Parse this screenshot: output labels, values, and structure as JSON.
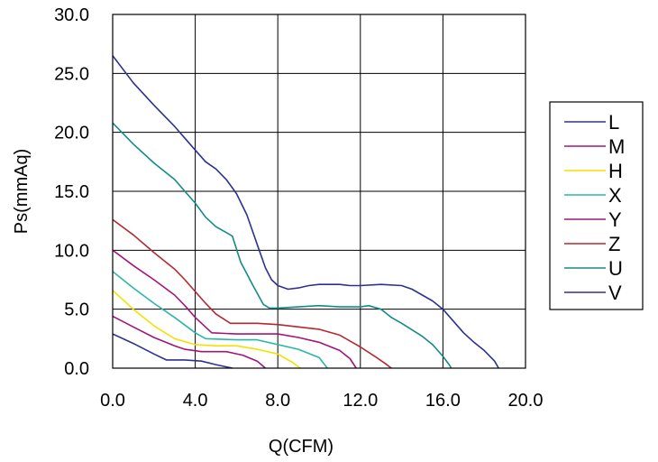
{
  "chart_data": {
    "type": "line",
    "title": "",
    "xlabel": "Q(CFM)",
    "ylabel": "Ps(mmAq)",
    "xlim": [
      0,
      20
    ],
    "ylim": [
      0,
      30
    ],
    "x_ticks": [
      "0.0",
      "4.0",
      "8.0",
      "12.0",
      "16.0",
      "20.0"
    ],
    "y_ticks": [
      "0.0",
      "5.0",
      "10.0",
      "15.0",
      "20.0",
      "25.0",
      "30.0"
    ],
    "grid": true,
    "legend_position": "right",
    "series": [
      {
        "name": "L",
        "color": "#2e3192",
        "points": [
          [
            0,
            2.9
          ],
          [
            1,
            2.1
          ],
          [
            2,
            1.2
          ],
          [
            2.6,
            0.7
          ],
          [
            3.5,
            0.7
          ],
          [
            4.3,
            0.6
          ],
          [
            5,
            0.3
          ],
          [
            5.8,
            0
          ]
        ]
      },
      {
        "name": "M",
        "color": "#a3157a",
        "points": [
          [
            0,
            4.4
          ],
          [
            1,
            3.5
          ],
          [
            2,
            2.6
          ],
          [
            3,
            1.9
          ],
          [
            3.5,
            1.6
          ],
          [
            4.3,
            1.4
          ],
          [
            5.5,
            1.4
          ],
          [
            6.3,
            1.1
          ],
          [
            7,
            0.6
          ],
          [
            7.4,
            0
          ]
        ]
      },
      {
        "name": "H",
        "color": "#f2e200",
        "points": [
          [
            0,
            6.6
          ],
          [
            1,
            5.0
          ],
          [
            2,
            3.6
          ],
          [
            3,
            2.5
          ],
          [
            4,
            2.0
          ],
          [
            5,
            1.9
          ],
          [
            6,
            1.9
          ],
          [
            7,
            1.6
          ],
          [
            8,
            1.2
          ],
          [
            8.7,
            0.5
          ],
          [
            9.1,
            0
          ]
        ]
      },
      {
        "name": "X",
        "color": "#2bb5a7",
        "points": [
          [
            0,
            8.2
          ],
          [
            1,
            6.8
          ],
          [
            2,
            5.5
          ],
          [
            3,
            4.3
          ],
          [
            4,
            3.0
          ],
          [
            4.5,
            2.5
          ],
          [
            6,
            2.4
          ],
          [
            7,
            2.4
          ],
          [
            8,
            2.0
          ],
          [
            9,
            1.6
          ],
          [
            10,
            0.9
          ],
          [
            10.4,
            0
          ]
        ]
      },
      {
        "name": "Y",
        "color": "#a3157a",
        "points": [
          [
            0,
            10.0
          ],
          [
            1,
            8.7
          ],
          [
            2,
            7.5
          ],
          [
            3,
            6.2
          ],
          [
            3.5,
            5.3
          ],
          [
            4,
            4.3
          ],
          [
            4.8,
            3.0
          ],
          [
            6,
            2.9
          ],
          [
            7,
            2.9
          ],
          [
            8,
            2.9
          ],
          [
            9,
            2.6
          ],
          [
            10,
            2.2
          ],
          [
            11,
            1.5
          ],
          [
            11.5,
            0.8
          ],
          [
            11.8,
            0
          ]
        ]
      },
      {
        "name": "Z",
        "color": "#b5282e",
        "points": [
          [
            0,
            12.6
          ],
          [
            1,
            11.3
          ],
          [
            2,
            9.8
          ],
          [
            3,
            8.4
          ],
          [
            3.5,
            7.5
          ],
          [
            4,
            6.5
          ],
          [
            4.5,
            5.5
          ],
          [
            5,
            4.6
          ],
          [
            5.7,
            3.8
          ],
          [
            7,
            3.8
          ],
          [
            8,
            3.7
          ],
          [
            9,
            3.5
          ],
          [
            10,
            3.3
          ],
          [
            11,
            2.8
          ],
          [
            12,
            1.8
          ],
          [
            12.7,
            1.0
          ],
          [
            13.2,
            0.4
          ],
          [
            13.5,
            0
          ]
        ]
      },
      {
        "name": "U",
        "color": "#138b86",
        "points": [
          [
            0,
            20.8
          ],
          [
            1,
            19.0
          ],
          [
            2,
            17.4
          ],
          [
            3,
            16.0
          ],
          [
            3.5,
            15.0
          ],
          [
            4,
            14.0
          ],
          [
            4.5,
            12.8
          ],
          [
            5,
            12.0
          ],
          [
            5.5,
            11.5
          ],
          [
            5.8,
            11.2
          ],
          [
            6.2,
            9.0
          ],
          [
            6.8,
            7.0
          ],
          [
            7.3,
            5.4
          ],
          [
            7.6,
            5.1
          ],
          [
            8,
            5.1
          ],
          [
            9,
            5.2
          ],
          [
            10,
            5.3
          ],
          [
            11,
            5.2
          ],
          [
            12,
            5.2
          ],
          [
            12.4,
            5.3
          ],
          [
            13,
            5.0
          ],
          [
            13.5,
            4.3
          ],
          [
            14,
            3.8
          ],
          [
            15,
            2.7
          ],
          [
            15.5,
            2.0
          ],
          [
            16,
            1.0
          ],
          [
            16.3,
            0.3
          ],
          [
            16.4,
            0
          ]
        ]
      },
      {
        "name": "V",
        "color": "#2e3192",
        "points": [
          [
            0,
            26.5
          ],
          [
            1,
            24.2
          ],
          [
            2,
            22.3
          ],
          [
            3,
            20.5
          ],
          [
            3.5,
            19.5
          ],
          [
            4,
            18.5
          ],
          [
            4.5,
            17.5
          ],
          [
            5,
            16.9
          ],
          [
            5.5,
            16.0
          ],
          [
            6,
            14.8
          ],
          [
            6.5,
            13.0
          ],
          [
            7,
            10.5
          ],
          [
            7.4,
            8.5
          ],
          [
            7.7,
            7.5
          ],
          [
            8,
            7.0
          ],
          [
            8.5,
            6.7
          ],
          [
            9,
            6.8
          ],
          [
            9.5,
            7.0
          ],
          [
            10,
            7.1
          ],
          [
            11,
            7.1
          ],
          [
            11.5,
            7.0
          ],
          [
            12,
            7.0
          ],
          [
            13,
            7.1
          ],
          [
            14,
            7.0
          ],
          [
            14.5,
            6.7
          ],
          [
            15,
            6.2
          ],
          [
            15.5,
            5.7
          ],
          [
            16,
            5.0
          ],
          [
            16.5,
            4.0
          ],
          [
            17,
            3.0
          ],
          [
            17.5,
            2.2
          ],
          [
            18,
            1.5
          ],
          [
            18.5,
            0.6
          ],
          [
            18.7,
            0
          ]
        ]
      }
    ]
  }
}
